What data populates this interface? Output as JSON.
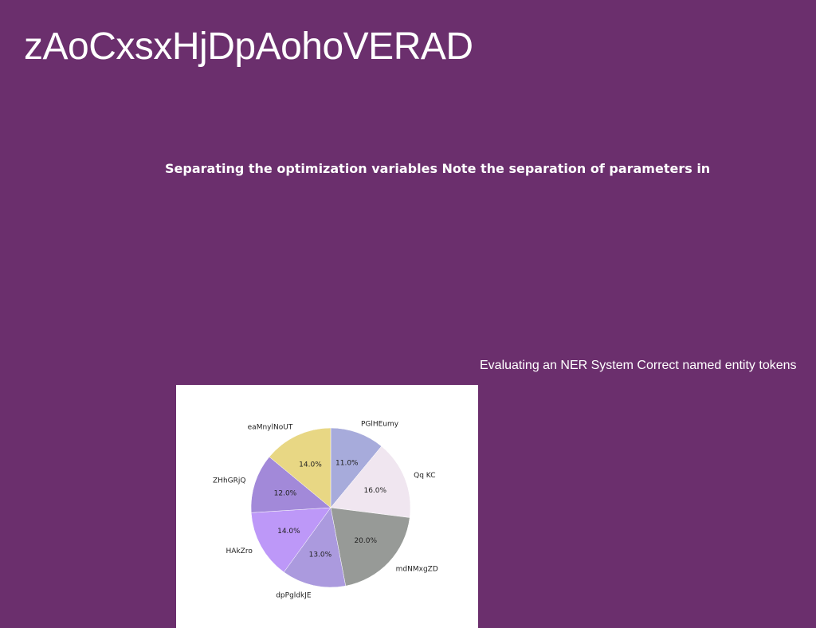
{
  "page": {
    "title": "zAoCxsxHjDpAohoVERAD",
    "subtitle": "Separating the optimization variables Note the separation of parameters in",
    "caption": "Evaluating an NER System Correct named entity tokens",
    "background_color": "#6b2f6d"
  },
  "chart_data": {
    "type": "pie",
    "start_angle_deg": 90,
    "direction": "clockwise",
    "slices": [
      {
        "label": "PGlHEumy",
        "value": 11.0,
        "pct_label": "11.0%",
        "color": "#a7abdb"
      },
      {
        "label": "Qq KC",
        "value": 16.0,
        "pct_label": "16.0%",
        "color": "#f0e6f0"
      },
      {
        "label": "mdNMxgZD",
        "value": 20.0,
        "pct_label": "20.0%",
        "color": "#979a97"
      },
      {
        "label": "dpPgldkJE",
        "value": 13.0,
        "pct_label": "13.0%",
        "color": "#ab9ade"
      },
      {
        "label": "HAkZro",
        "value": 14.0,
        "pct_label": "14.0%",
        "color": "#bd98f8"
      },
      {
        "label": "ZHhGRjQ",
        "value": 12.0,
        "pct_label": "12.0%",
        "color": "#a289d9"
      },
      {
        "label": "eaMnylNoUT",
        "value": 14.0,
        "pct_label": "14.0%",
        "color": "#e8d784"
      }
    ]
  }
}
